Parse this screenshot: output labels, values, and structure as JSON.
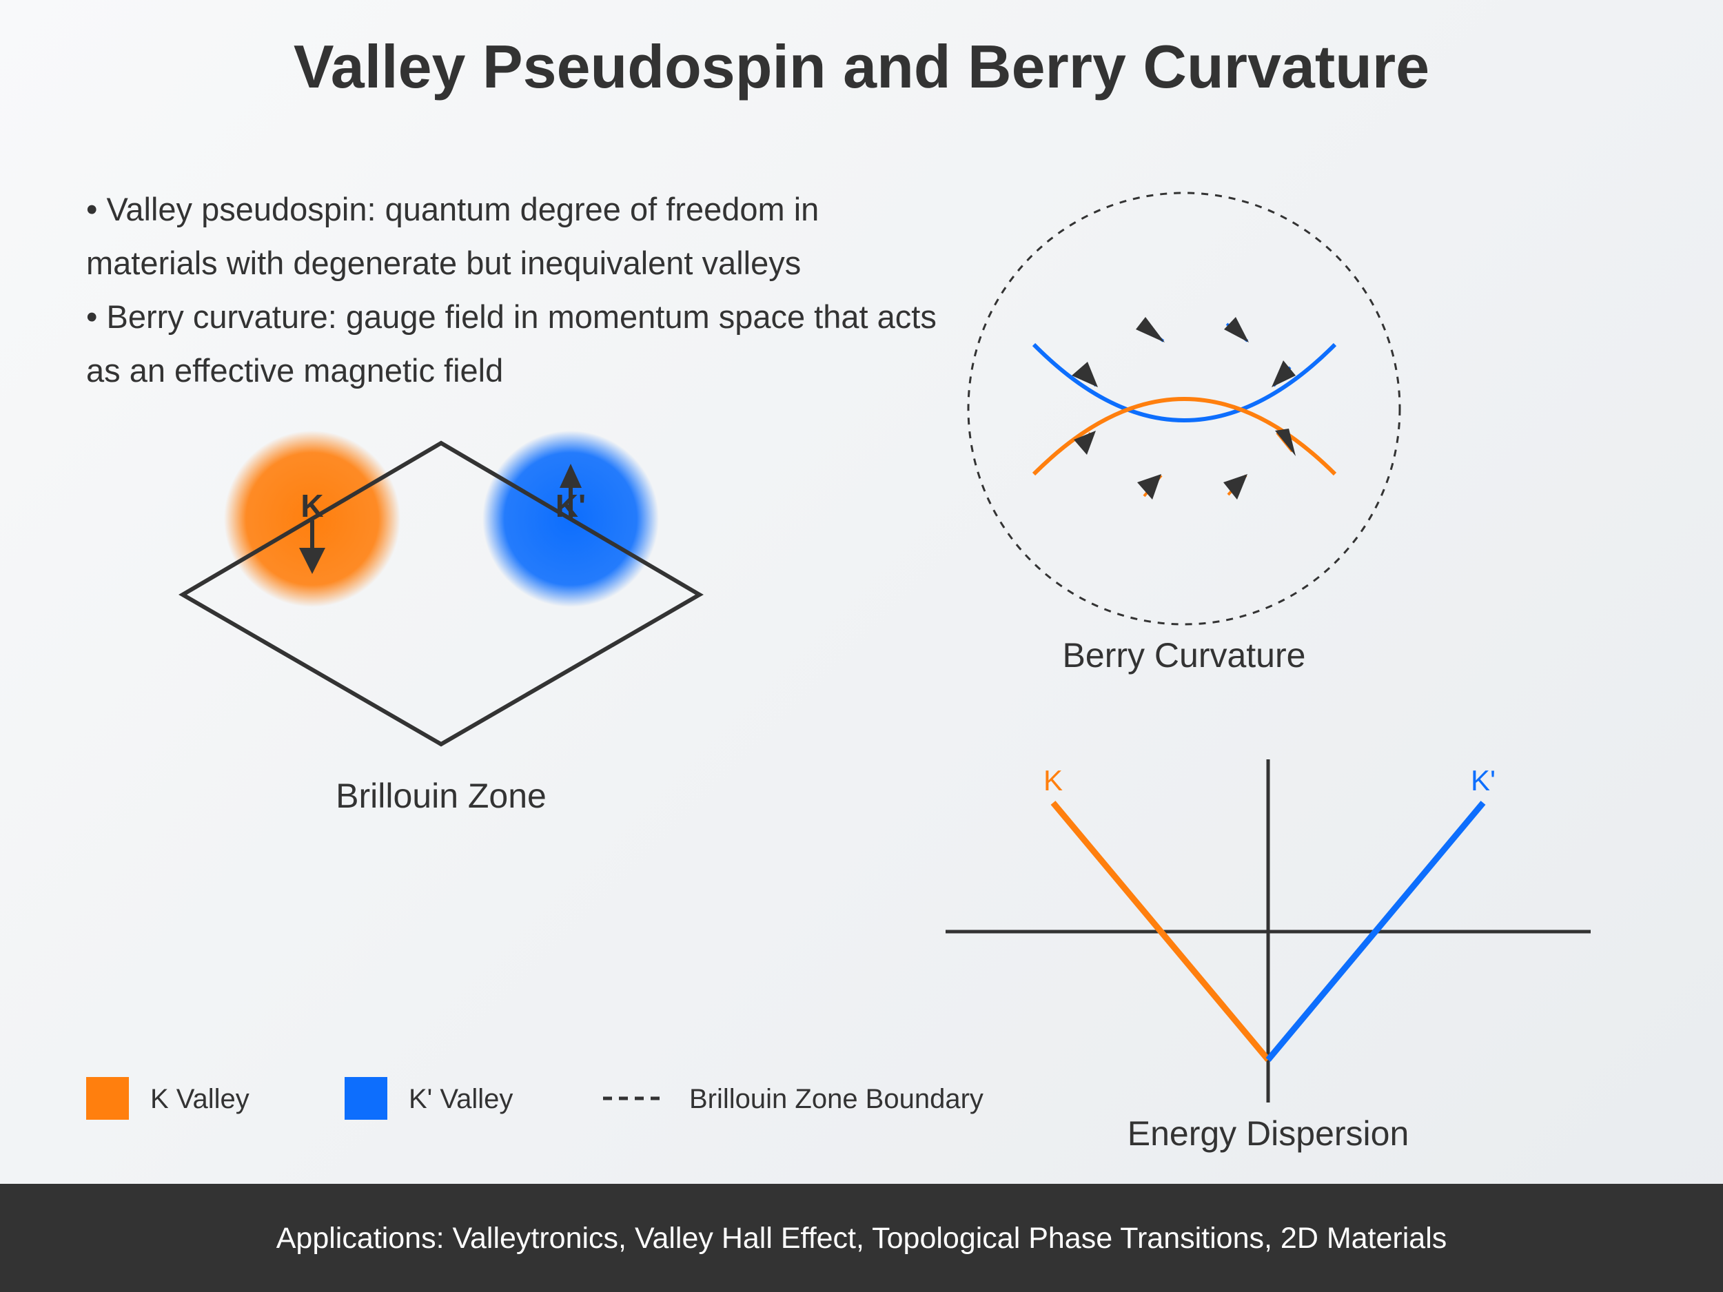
{
  "title": "Valley Pseudospin and Berry Curvature",
  "bullets": [
    "• Valley pseudospin: quantum degree of freedom in materials with degenerate but inequivalent valleys",
    "• Berry curvature: gauge field in momentum space that acts as an effective magnetic field"
  ],
  "brillouin": {
    "caption": "Brillouin Zone",
    "k_label": "K",
    "kprime_label": "K'"
  },
  "berry": {
    "caption": "Berry Curvature"
  },
  "dispersion": {
    "caption": "Energy Dispersion",
    "k_label": "K",
    "kprime_label": "K'"
  },
  "legend": {
    "k_valley": "K Valley",
    "kprime_valley": "K' Valley",
    "boundary": "Brillouin Zone Boundary"
  },
  "footer": "Applications: Valleytronics, Valley Hall Effect, Topological Phase Transitions, 2D Materials",
  "colors": {
    "k_valley": "#ff7f0e",
    "kprime_valley": "#0d6efd",
    "ink": "#333333"
  },
  "icons": {
    "pseudospin_down": "arrow-down-icon",
    "pseudospin_up": "arrow-up-icon",
    "berry_flow": "arrowhead-icon"
  }
}
